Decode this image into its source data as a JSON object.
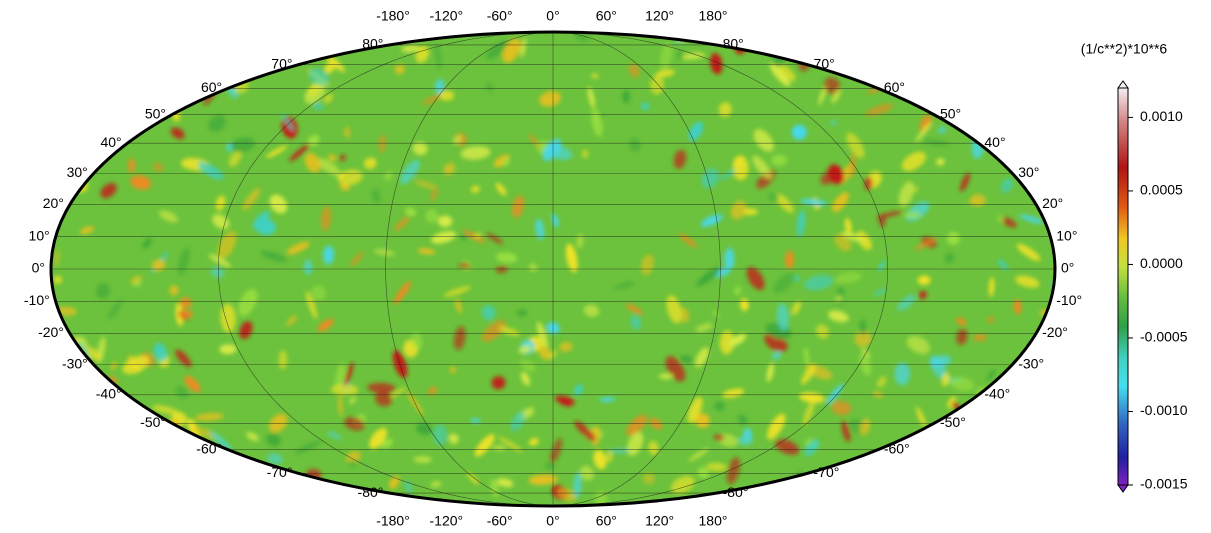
{
  "map": {
    "lat_labels_left": [
      {
        "value": 80,
        "label": "80°"
      },
      {
        "value": 70,
        "label": "70°"
      },
      {
        "value": 60,
        "label": "60°"
      },
      {
        "value": 50,
        "label": "50°"
      },
      {
        "value": 40,
        "label": "40°"
      },
      {
        "value": 30,
        "label": "30°"
      },
      {
        "value": 20,
        "label": "20°"
      },
      {
        "value": 10,
        "label": "10°"
      },
      {
        "value": 0,
        "label": "0°"
      },
      {
        "value": -10,
        "label": "-10°"
      },
      {
        "value": -20,
        "label": "-20°"
      },
      {
        "value": -30,
        "label": "-30°"
      },
      {
        "value": -40,
        "label": "-40°"
      },
      {
        "value": -50,
        "label": "-50°"
      },
      {
        "value": -60,
        "label": "-60°"
      },
      {
        "value": -70,
        "label": "-70°"
      },
      {
        "value": -80,
        "label": "-80°"
      }
    ],
    "lat_labels_right": [
      {
        "value": 80,
        "label": "80°"
      },
      {
        "value": 70,
        "label": "70°"
      },
      {
        "value": 60,
        "label": "60°"
      },
      {
        "value": 50,
        "label": "50°"
      },
      {
        "value": 40,
        "label": "40°"
      },
      {
        "value": 30,
        "label": "30°"
      },
      {
        "value": 20,
        "label": "20°"
      },
      {
        "value": 10,
        "label": "10°"
      },
      {
        "value": 0,
        "label": "0°"
      },
      {
        "value": -10,
        "label": "-10°"
      },
      {
        "value": -20,
        "label": "-20°"
      },
      {
        "value": -30,
        "label": "-30°"
      },
      {
        "value": -40,
        "label": "-40°"
      },
      {
        "value": -50,
        "label": "-50°"
      },
      {
        "value": -60,
        "label": "-60°"
      },
      {
        "value": -70,
        "label": "-70°"
      },
      {
        "value": -80,
        "label": "-80°"
      }
    ],
    "lon_labels_top": [
      {
        "value": -180,
        "label": "-180°"
      },
      {
        "value": -120,
        "label": "-120°"
      },
      {
        "value": -60,
        "label": "-60°"
      },
      {
        "value": 0,
        "label": "0°"
      },
      {
        "value": 60,
        "label": "60°"
      },
      {
        "value": 120,
        "label": "120°"
      },
      {
        "value": 180,
        "label": "180°"
      }
    ],
    "lon_labels_bottom": [
      {
        "value": -180,
        "label": "-180°"
      },
      {
        "value": -120,
        "label": "-120°"
      },
      {
        "value": -60,
        "label": "-60°"
      },
      {
        "value": 0,
        "label": "0°"
      },
      {
        "value": 60,
        "label": "60°"
      },
      {
        "value": 120,
        "label": "120°"
      },
      {
        "value": 180,
        "label": "180°"
      }
    ]
  },
  "colorbar": {
    "title": "(1/c**2)*10**6",
    "range": [
      -0.0015,
      0.0012
    ],
    "ticks": [
      {
        "value": 0.001,
        "label": "0.0010"
      },
      {
        "value": 0.0005,
        "label": "0.0005"
      },
      {
        "value": 0,
        "label": "0.0000"
      },
      {
        "value": -0.0005,
        "label": "-0.0005"
      },
      {
        "value": -0.001,
        "label": "-0.0010"
      },
      {
        "value": -0.0015,
        "label": "-0.0015"
      }
    ]
  }
}
